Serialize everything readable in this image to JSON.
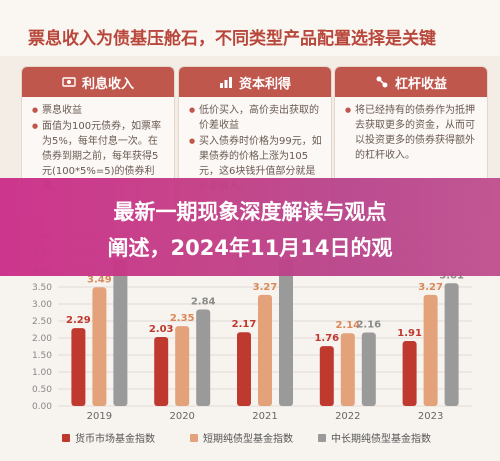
{
  "header": {
    "title": "票息收入为债基压舱石，不同类型产品配置选择是关键"
  },
  "cards": [
    {
      "title": "利息收入",
      "icon": "money-icon",
      "lines": [
        "票息收益",
        "面值为100元债券，如票率为5%，每年付息一次。在债券到期之前，每年获得5元(100*5%=5)的债券利息。"
      ]
    },
    {
      "title": "资本利得",
      "icon": "chart-growth-icon",
      "lines": [
        "低价买入，高价卖出获取的价差收益",
        "买入债券时价格为99元，如果债券的价格上涨为105元，这6块钱升值部分就是价差收入。"
      ]
    },
    {
      "title": "杠杆收益",
      "icon": "lever-icon",
      "lines": [
        "将已经持有的债券作为抵押去获取更多的资金，从而可以投资更多的债券获得额外的杠杆收入。"
      ]
    }
  ],
  "banner": {
    "line1": "最新一期现象深度解读与观点",
    "line2": "阐述，2024年11月14日的观"
  },
  "colors": {
    "series1": "#c0392f",
    "series2": "#e3a27a",
    "series3": "#9a9a9a",
    "accent": "#c0574c",
    "banner": "#c43e86"
  },
  "chart_data": {
    "type": "bar",
    "categories": [
      "2019",
      "2020",
      "2021",
      "2022",
      "2023"
    ],
    "series": [
      {
        "name": "货币市场基金指数",
        "values": [
          2.29,
          2.03,
          2.17,
          1.76,
          1.91
        ]
      },
      {
        "name": "短期纯债型基金指数",
        "values": [
          3.49,
          2.35,
          3.27,
          2.14,
          3.27
        ]
      },
      {
        "name": "中长期纯债型基金指数",
        "values": [
          4.3,
          2.84,
          4.3,
          2.16,
          3.61
        ]
      }
    ],
    "ylim": [
      0,
      5
    ],
    "yticks": [
      "0.00",
      "0.50",
      "1.00",
      "1.50",
      "2.00",
      "2.50",
      "3.00",
      "3.50",
      "4.00",
      "4.50",
      "5.00"
    ],
    "labels_shown": [
      [
        "2.29",
        "3.49",
        ""
      ],
      [
        "2.03",
        "2.35",
        "2.84"
      ],
      [
        "2.17",
        "3.27",
        ""
      ],
      [
        "1.76",
        "2.14",
        "2.16"
      ],
      [
        "1.91",
        "3.27",
        "3.61"
      ]
    ],
    "legend": "bottom"
  }
}
